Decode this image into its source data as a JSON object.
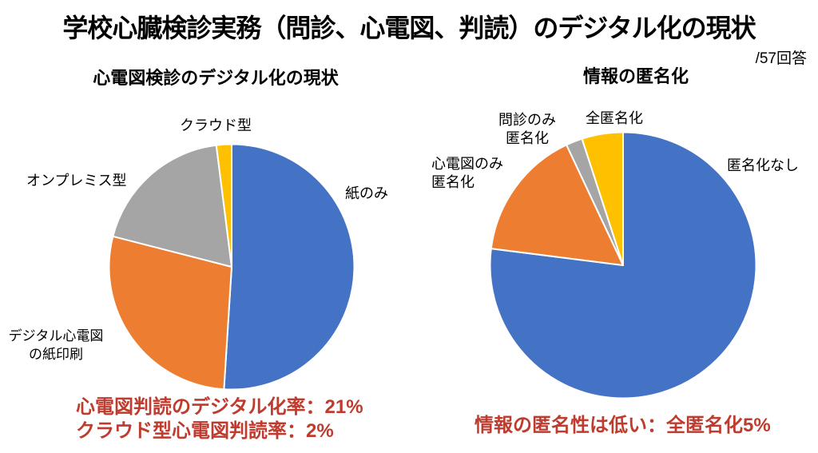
{
  "page": {
    "title": "学校心臓検診実務（問診、心電図、判読）のデジタル化の現状",
    "responses_note": "/57回答"
  },
  "colors": {
    "slice_blue": "#4472C4",
    "slice_orange": "#ED7D31",
    "slice_gray": "#A5A5A5",
    "slice_yellow": "#FFC000",
    "annotation_red": "#BE3B2E",
    "text": "#000000",
    "background": "#FFFFFF"
  },
  "chart_data": [
    {
      "type": "pie",
      "title": "心電図検診のデジタル化の現状",
      "start_angle_deg": 0,
      "direction": "clockwise",
      "legend_position": "outside-labels",
      "slices": [
        {
          "label": "紙のみ",
          "value_pct": 51,
          "color": "#4472C4"
        },
        {
          "label": "デジタル心電図\nの紙印刷",
          "value_pct": 28,
          "color": "#ED7D31"
        },
        {
          "label": "オンプレミス型",
          "value_pct": 19,
          "color": "#A5A5A5"
        },
        {
          "label": "クラウド型",
          "value_pct": 2,
          "color": "#FFC000"
        }
      ],
      "annotations": [
        "心電図判読のデジタル化率：21%",
        "クラウド型心電図判読率：2%"
      ]
    },
    {
      "type": "pie",
      "title": "情報の匿名化",
      "start_angle_deg": 0,
      "direction": "clockwise",
      "legend_position": "outside-labels",
      "slices": [
        {
          "label": "匿名化なし",
          "value_pct": 77,
          "color": "#4472C4"
        },
        {
          "label": "心電図のみ\n匿名化",
          "value_pct": 16,
          "color": "#ED7D31"
        },
        {
          "label": "問診のみ\n匿名化",
          "value_pct": 2,
          "color": "#A5A5A5"
        },
        {
          "label": "全匿名化",
          "value_pct": 5,
          "color": "#FFC000"
        }
      ],
      "annotations": [
        "情報の匿名性は低い：全匿名化5%"
      ]
    }
  ]
}
